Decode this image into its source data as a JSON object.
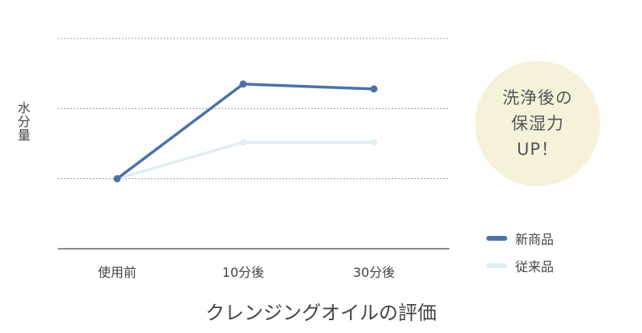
{
  "chart_data": {
    "type": "line",
    "categories": [
      "使用前",
      "10分後",
      "30分後"
    ],
    "series": [
      {
        "name": "新商品",
        "values": [
          1.0,
          2.35,
          2.28
        ],
        "color": "#4a73a6"
      },
      {
        "name": "従来品",
        "values": [
          1.0,
          1.52,
          1.52
        ],
        "color": "#dfeef3"
      }
    ],
    "ylim": [
      0,
      3
    ],
    "ylabel": "水分量",
    "xlabel": "クレンジングオイルの評価",
    "grid": true,
    "legend": "right",
    "annotation": [
      "洗浄後の",
      "保湿力",
      "UP！"
    ],
    "badge_color": "#f6f2d9",
    "axis_color": "#666666",
    "grid_color": "#9a9a9a"
  }
}
